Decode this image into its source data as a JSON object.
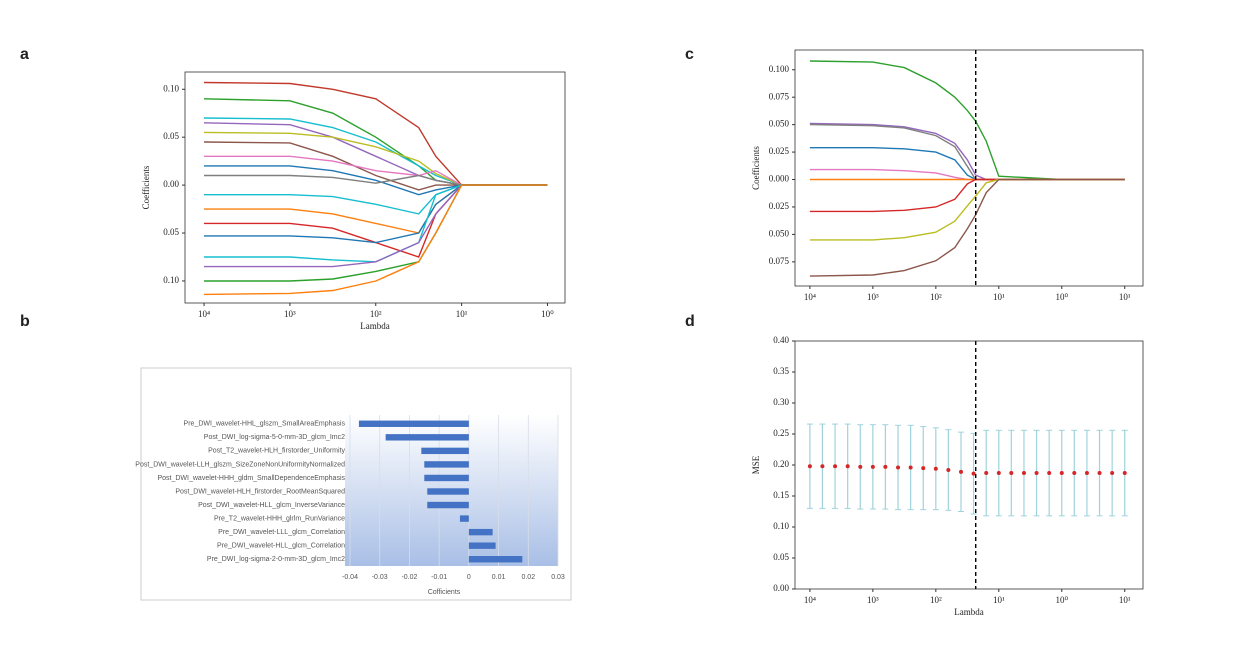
{
  "chart_data": [
    {
      "type": "line",
      "panel_label": "a",
      "xlabel": "Lambda",
      "ylabel": "Coefficients",
      "log_x": true,
      "xlim": [
        6e-05,
        1.6
      ],
      "ylim": [
        -0.123,
        0.118
      ],
      "xticks": [
        {
          "value": 0.0001,
          "label": "10⁴"
        },
        {
          "value": 0.001,
          "label": "10³"
        },
        {
          "value": 0.01,
          "label": "10²"
        },
        {
          "value": 0.1,
          "label": "10¹"
        },
        {
          "value": 1,
          "label": "10⁰"
        }
      ],
      "yticks": [
        {
          "value": 0.1,
          "label": "0.10"
        },
        0.05,
        {
          "value": 0,
          "label": "0.00"
        },
        {
          "value": -0.05,
          "label": "0.05"
        },
        {
          "value": -0.1,
          "label": "0.10"
        }
      ],
      "x": [
        0.0001,
        0.001,
        0.00316,
        0.01,
        0.0316,
        0.05,
        0.1,
        1
      ],
      "series": [
        {
          "color": "#c0392b",
          "values": [
            0.107,
            0.106,
            0.1,
            0.09,
            0.06,
            0.03,
            0,
            0
          ]
        },
        {
          "color": "#2ca02c",
          "values": [
            0.09,
            0.088,
            0.075,
            0.05,
            0.02,
            0.005,
            0,
            0
          ]
        },
        {
          "color": "#17becf",
          "values": [
            0.07,
            0.069,
            0.06,
            0.045,
            0.02,
            0.01,
            0,
            0
          ]
        },
        {
          "color": "#9467bd",
          "values": [
            0.065,
            0.063,
            0.05,
            0.03,
            0.01,
            0.005,
            0,
            0
          ]
        },
        {
          "color": "#bcbd22",
          "values": [
            0.055,
            0.054,
            0.05,
            0.04,
            0.025,
            0.012,
            0,
            0
          ]
        },
        {
          "color": "#8c564b",
          "values": [
            0.045,
            0.044,
            0.03,
            0.01,
            -0.005,
            0,
            0,
            0
          ]
        },
        {
          "color": "#e377c2",
          "values": [
            0.03,
            0.03,
            0.025,
            0.015,
            0.01,
            0.015,
            0,
            0
          ]
        },
        {
          "color": "#1f77b4",
          "values": [
            0.02,
            0.02,
            0.015,
            0.005,
            -0.01,
            -0.005,
            0,
            0
          ]
        },
        {
          "color": "#7f7f7f",
          "values": [
            0.01,
            0.01,
            0.008,
            0.002,
            0.01,
            0.005,
            0,
            0
          ]
        },
        {
          "color": "#17becf",
          "values": [
            -0.01,
            -0.01,
            -0.012,
            -0.02,
            -0.03,
            -0.01,
            0,
            0
          ]
        },
        {
          "color": "#ff7f0e",
          "values": [
            -0.025,
            -0.025,
            -0.03,
            -0.04,
            -0.05,
            -0.02,
            0,
            0
          ]
        },
        {
          "color": "#d62728",
          "values": [
            -0.04,
            -0.04,
            -0.045,
            -0.06,
            -0.075,
            -0.03,
            0,
            0
          ]
        },
        {
          "color": "#1f77b4",
          "values": [
            -0.053,
            -0.053,
            -0.055,
            -0.06,
            -0.05,
            -0.02,
            0,
            0
          ]
        },
        {
          "color": "#17becf",
          "values": [
            -0.075,
            -0.075,
            -0.078,
            -0.08,
            -0.06,
            -0.01,
            0,
            0
          ]
        },
        {
          "color": "#9467bd",
          "values": [
            -0.085,
            -0.085,
            -0.085,
            -0.08,
            -0.06,
            -0.03,
            0,
            0
          ]
        },
        {
          "color": "#2ca02c",
          "values": [
            -0.1,
            -0.1,
            -0.098,
            -0.09,
            -0.08,
            -0.05,
            0,
            0
          ]
        },
        {
          "color": "#ff7f0e",
          "values": [
            -0.114,
            -0.113,
            -0.11,
            -0.1,
            -0.08,
            -0.05,
            0,
            0
          ]
        }
      ]
    },
    {
      "type": "bar",
      "orientation": "horizontal",
      "panel_label": "b",
      "xlabel": "Cofficients",
      "color": "#4472c4",
      "xlim": [
        -0.04,
        0.03
      ],
      "xticks": [
        -0.04,
        -0.03,
        -0.02,
        -0.01,
        0,
        0.01,
        0.02,
        0.03
      ],
      "categories": [
        "Pre_DWI_wavelet-HHL_glszm_SmallAreaEmphasis",
        "Post_DWI_log-sigma-5-0-mm-3D_glcm_Imc2",
        "Post_T2_wavelet-HLH_firstorder_Uniformity",
        "Post_DWI_wavelet-LLH_glszm_SizeZoneNonUniformityNormalized",
        "Post_DWI_wavelet-HHH_gldm_SmallDependenceEmphasis",
        "Post_DWI_wavelet-HLH_firstorder_RootMeanSquared",
        "Post_DWI_wavelet-HLL_glcm_InverseVariance",
        "Pre_T2_wavelet-HHH_glrlm_RunVariance",
        "Pre_DWI_wavelet-LLL_glcm_Correlation",
        "Pre_DWI_wavelet-HLL_glcm_Correlation",
        "Pre_DWI_log-sigma-2-0-mm-3D_glcm_Imc2"
      ],
      "values": [
        -0.037,
        -0.028,
        -0.016,
        -0.015,
        -0.015,
        -0.014,
        -0.014,
        -0.003,
        0.008,
        0.009,
        0.018
      ]
    },
    {
      "type": "line",
      "panel_label": "c",
      "ylabel": "Coefficients",
      "log_x": true,
      "vline": 0.043,
      "xlim": [
        5.8e-05,
        19.5
      ],
      "ylim": [
        -0.097,
        0.118
      ],
      "xticks": [
        {
          "value": 0.0001,
          "label": "10⁴"
        },
        {
          "value": 0.001,
          "label": "10³"
        },
        {
          "value": 0.01,
          "label": "10²"
        },
        {
          "value": 0.1,
          "label": "10¹"
        },
        {
          "value": 1,
          "label": "10⁰"
        },
        {
          "value": 10,
          "label": "10¹"
        }
      ],
      "yticks": [
        {
          "value": 0.1,
          "label": "0.100"
        },
        0.075,
        {
          "value": 0.05,
          "label": "0.050"
        },
        0.025,
        {
          "value": 0,
          "label": "0.000"
        },
        {
          "value": -0.025,
          "label": "0.025"
        },
        {
          "value": -0.05,
          "label": "0.050"
        },
        {
          "value": -0.075,
          "label": "0.075"
        }
      ],
      "x": [
        0.0001,
        0.001,
        0.00316,
        0.01,
        0.02,
        0.0316,
        0.043,
        0.063,
        0.1,
        1,
        10
      ],
      "series": [
        {
          "color": "#2ca02c",
          "values": [
            0.108,
            0.107,
            0.102,
            0.088,
            0.075,
            0.063,
            0.053,
            0.035,
            0.003,
            0,
            0
          ]
        },
        {
          "color": "#9467bd",
          "values": [
            0.051,
            0.05,
            0.048,
            0.042,
            0.033,
            0.018,
            0.004,
            0,
            0,
            0,
            0
          ]
        },
        {
          "color": "#7f7f7f",
          "values": [
            0.05,
            0.049,
            0.047,
            0.04,
            0.03,
            0.012,
            0,
            0,
            0,
            0,
            0
          ]
        },
        {
          "color": "#1f77b4",
          "values": [
            0.029,
            0.029,
            0.028,
            0.025,
            0.018,
            0.004,
            0,
            0,
            0,
            0,
            0
          ]
        },
        {
          "color": "#e377c2",
          "values": [
            0.009,
            0.009,
            0.008,
            0.006,
            0.002,
            0,
            0,
            0,
            0,
            0,
            0
          ]
        },
        {
          "color": "#ff7f0e",
          "values": [
            0,
            0,
            0,
            0,
            0,
            0,
            0,
            0,
            0,
            0,
            0
          ]
        },
        {
          "color": "#d62728",
          "values": [
            -0.029,
            -0.029,
            -0.028,
            -0.025,
            -0.018,
            -0.004,
            0,
            0,
            0,
            0,
            0
          ]
        },
        {
          "color": "#bcbd22",
          "values": [
            -0.055,
            -0.055,
            -0.053,
            -0.048,
            -0.038,
            -0.024,
            -0.015,
            -0.003,
            0,
            0,
            0
          ]
        },
        {
          "color": "#8c564b",
          "values": [
            -0.088,
            -0.087,
            -0.083,
            -0.074,
            -0.062,
            -0.045,
            -0.032,
            -0.012,
            0,
            0,
            0
          ]
        }
      ]
    },
    {
      "type": "errorbar",
      "panel_label": "d",
      "xlabel": "Lambda",
      "ylabel": "MSE",
      "log_x": true,
      "vline": 0.043,
      "color": "#d62728",
      "error_color": "#9fd3dc",
      "xlim": [
        5.8e-05,
        19.5
      ],
      "ylim": [
        0,
        0.4
      ],
      "xticks": [
        {
          "value": 0.0001,
          "label": "10⁴"
        },
        {
          "value": 0.001,
          "label": "10³"
        },
        {
          "value": 0.01,
          "label": "10²"
        },
        {
          "value": 0.1,
          "label": "10¹"
        },
        {
          "value": 1,
          "label": "10⁰"
        },
        {
          "value": 10,
          "label": "10¹"
        }
      ],
      "yticks": [
        {
          "value": 0,
          "label": "0.00"
        },
        0.05,
        {
          "value": 0.1,
          "label": "0.10"
        },
        0.15,
        {
          "value": 0.2,
          "label": "0.20"
        },
        0.25,
        {
          "value": 0.3,
          "label": "0.30"
        },
        0.35,
        {
          "value": 0.4,
          "label": "0.40"
        }
      ],
      "x": [
        0.0001,
        0.000158,
        0.000251,
        0.000398,
        0.000631,
        0.001,
        0.00158,
        0.00251,
        0.00398,
        0.00631,
        0.01,
        0.0158,
        0.0251,
        0.0398,
        0.0631,
        0.1,
        0.158,
        0.251,
        0.398,
        0.631,
        1,
        1.58,
        2.51,
        3.98,
        6.31,
        10
      ],
      "values": [
        0.198,
        0.198,
        0.198,
        0.198,
        0.197,
        0.197,
        0.197,
        0.196,
        0.196,
        0.195,
        0.194,
        0.192,
        0.189,
        0.186,
        0.187,
        0.187,
        0.187,
        0.187,
        0.187,
        0.187,
        0.187,
        0.187,
        0.187,
        0.187,
        0.187,
        0.187
      ],
      "errors": [
        0.068,
        0.068,
        0.068,
        0.068,
        0.068,
        0.068,
        0.068,
        0.068,
        0.068,
        0.067,
        0.066,
        0.065,
        0.064,
        0.065,
        0.069,
        0.069,
        0.069,
        0.069,
        0.069,
        0.069,
        0.069,
        0.069,
        0.069,
        0.069,
        0.069,
        0.069
      ]
    }
  ]
}
